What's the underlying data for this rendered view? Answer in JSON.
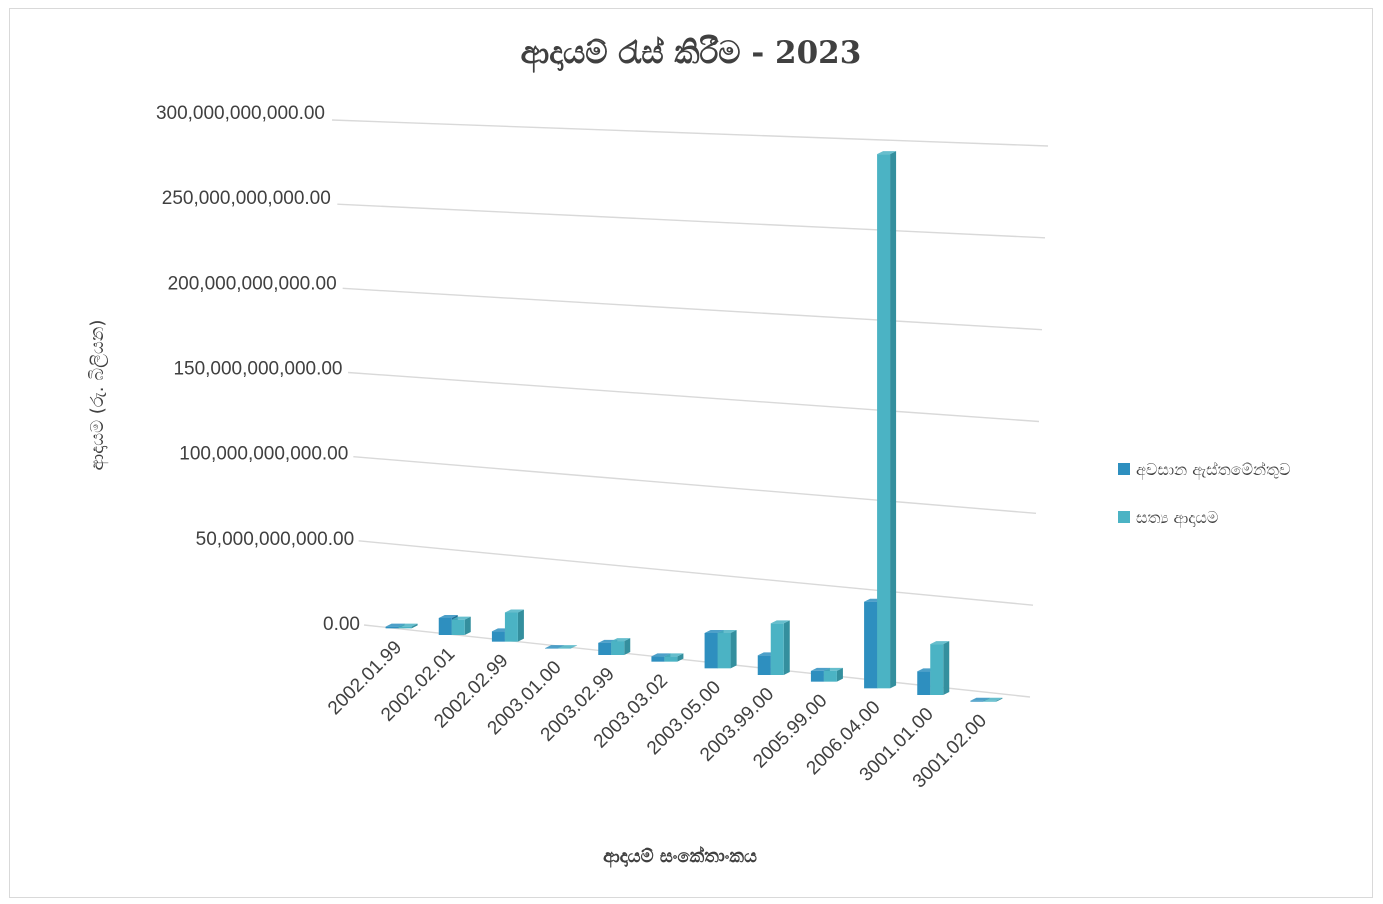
{
  "chart_data": {
    "type": "bar",
    "title": "ආදායම් රැස් කිරීම - 2023",
    "xlabel": "ආදායම් සංකේතාංකය",
    "ylabel": "ආදායම (රු. බිලියන)",
    "categories": [
      "2002.01.99",
      "2002.02.01",
      "2002.02.99",
      "2003.01.00",
      "2003.02.99",
      "2003.03.02",
      "2003.05.00",
      "2003.99.00",
      "2005.99.00",
      "2006.04.00",
      "3001.01.00",
      "3001.02.00"
    ],
    "series": [
      {
        "name": "අවසාන ඇස්තමේන්තුව",
        "color": "#2e8fbf",
        "values": [
          1000000000,
          10000000000,
          6000000000,
          100000000,
          7000000000,
          3000000000,
          20000000000,
          11000000000,
          6000000000,
          48000000000,
          13000000000,
          500000000
        ]
      },
      {
        "name": "සත්‍ය ආදායම",
        "color": "#4bb3c4",
        "values": [
          1000000000,
          9000000000,
          17000000000,
          100000000,
          8000000000,
          3000000000,
          20000000000,
          29000000000,
          6000000000,
          296000000000,
          28000000000,
          500000000
        ]
      }
    ],
    "yticks": [
      "0.00",
      "50,000,000,000.00",
      "100,000,000,000.00",
      "150,000,000,000.00",
      "200,000,000,000.00",
      "250,000,000,000.00",
      "300,000,000,000.00"
    ],
    "ylim": [
      0,
      300000000000
    ],
    "grid": true,
    "legend": "right",
    "projection": "3d-clustered-column"
  }
}
